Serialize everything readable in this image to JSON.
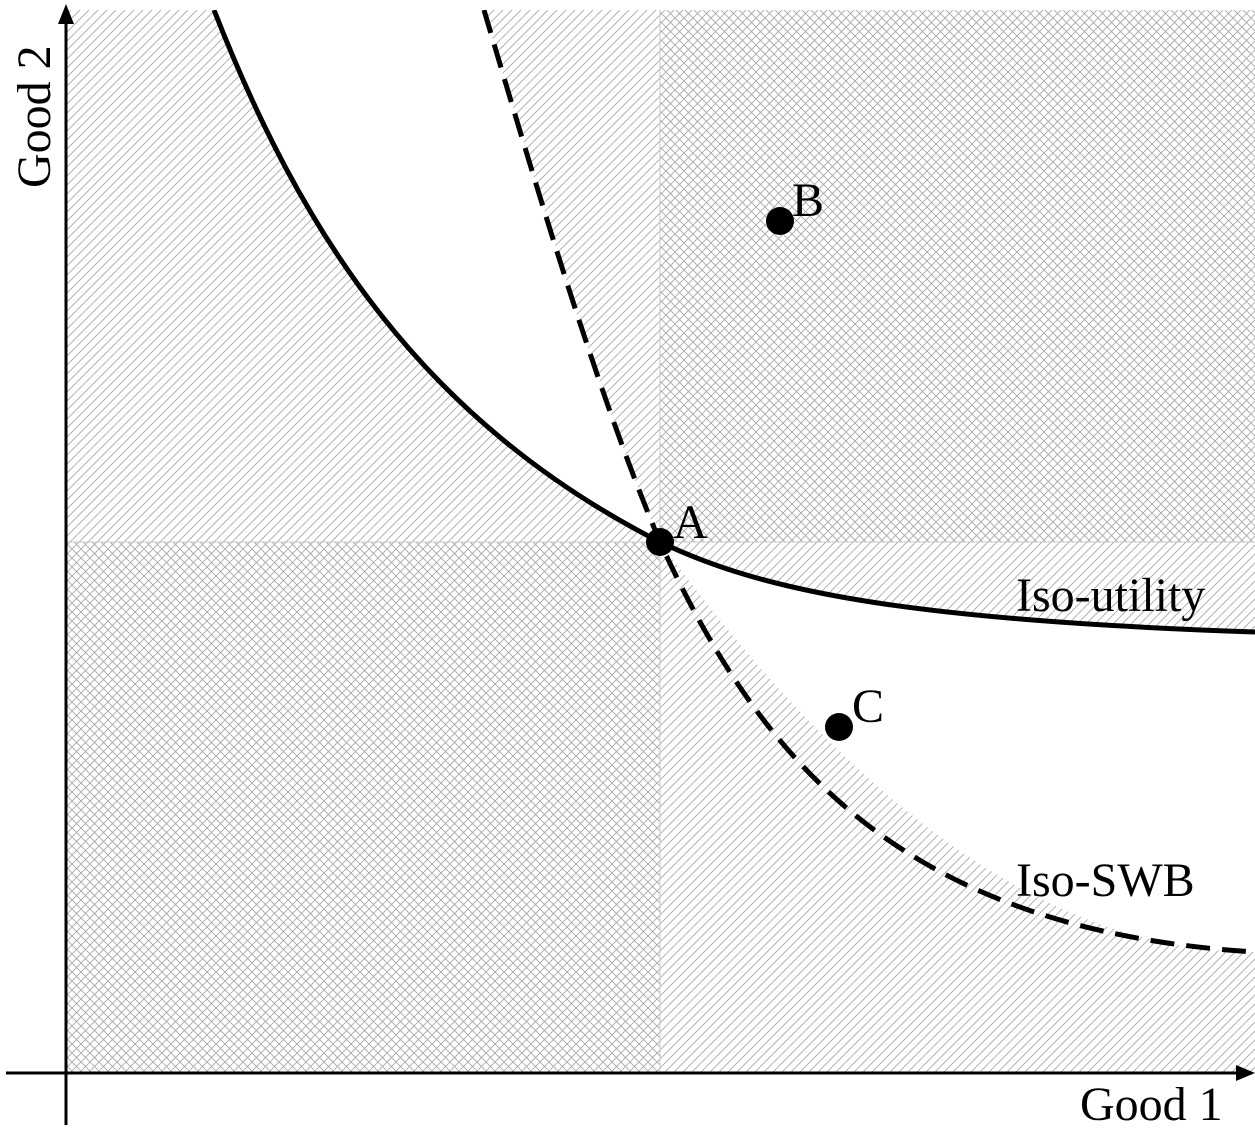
{
  "axes": {
    "x_label": "Good 1",
    "y_label": "Good 2"
  },
  "points": [
    {
      "id": "A",
      "label": "A"
    },
    {
      "id": "B",
      "label": "B"
    },
    {
      "id": "C",
      "label": "C"
    }
  ],
  "curves": {
    "iso_utility": {
      "label": "Iso-utility",
      "style": "solid"
    },
    "iso_swb": {
      "label": "Iso-SWB",
      "style": "dashed"
    }
  },
  "colors": {
    "ink": "#000000",
    "hatch": "#9a9a9a",
    "background": "#ffffff"
  }
}
